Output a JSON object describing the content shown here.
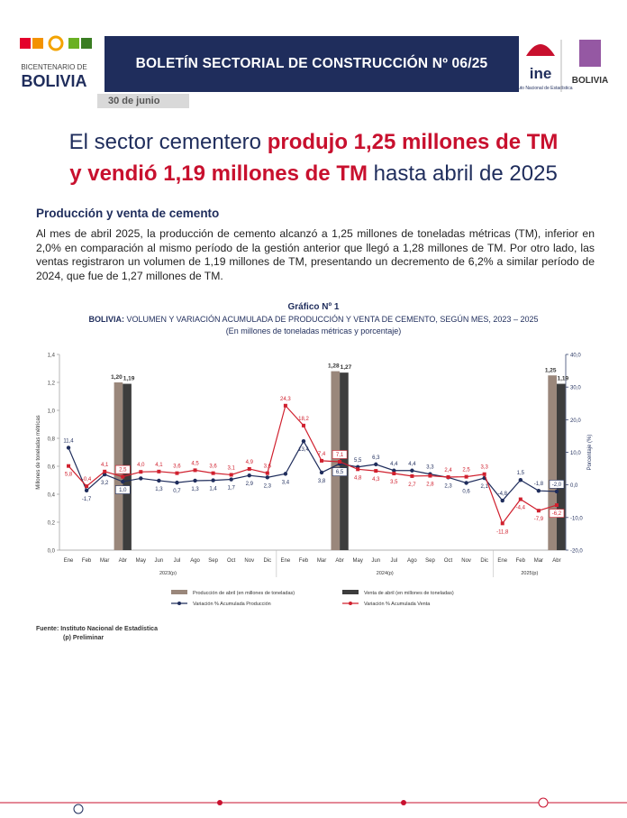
{
  "header": {
    "logo_line1": "BICENTENARIO DE",
    "logo_line2": "BOLIVIA",
    "title": "BOLETÍN SECTORIAL DE CONSTRUCCIÓN Nº 06/25",
    "date": "30 de junio",
    "ine": "ine",
    "ine_sub": "Instituto Nacional de Estadística",
    "gov": "BOLIVIA"
  },
  "headline": {
    "part1": "El sector cementero ",
    "part2": "produjo 1,25 millones de TM",
    "part3": "y vendió 1,19 millones de TM",
    "part4": " hasta abril de 2025"
  },
  "section_title": "Producción y venta de cemento",
  "paragraph": "Al mes de abril 2025, la producción de cemento alcanzó a 1,25 millones de toneladas métricas (TM), inferior en 2,0% en comparación al mismo período de la gestión anterior que llegó a 1,28 millones de TM. Por otro lado, las ventas registraron un volumen de 1,19 millones de TM, presentando un decremento de 6,2% a similar período de 2024, que fue de 1,27 millones de TM.",
  "source": [
    "Fuente: Instituto Nacional de Estadística",
    "(p) Preliminar"
  ],
  "chart_data": {
    "type": "bar_line",
    "label": "Gráfico Nº 1",
    "title_prefix": "BOLIVIA:",
    "title": " VOLUMEN Y VARIACIÓN ACUMULADA DE PRODUCCIÓN Y VENTA DE CEMENTO, SEGÚN MES, 2023 – 2025",
    "subtitle": "(En millones de toneladas métricas y porcentaje)",
    "y_label": "Millones de toneladas métricas",
    "y2_label": "Porcentaje (%)",
    "categories": [
      "Ene",
      "Feb",
      "Mar",
      "Abr",
      "May",
      "Jun",
      "Jul",
      "Ago",
      "Sep",
      "Oct",
      "Nov",
      "Dic",
      "Ene",
      "Feb",
      "Mar",
      "Abr",
      "May",
      "Jun",
      "Jul",
      "Ago",
      "Sep",
      "Oct",
      "Nov",
      "Dic",
      "Ene",
      "Feb",
      "Mar",
      "Abr"
    ],
    "year_groups": [
      {
        "label": "2023(p)",
        "count": 12
      },
      {
        "label": "2024(p)",
        "count": 12
      },
      {
        "label": "2025(p)",
        "count": 4
      }
    ],
    "ylim": [
      0,
      1.4
    ],
    "yticks": [
      {
        "value": 0,
        "label": "0,0"
      },
      {
        "value": 0.2,
        "label": "0,2"
      },
      {
        "value": 0.4,
        "label": "0,4"
      },
      {
        "value": 0.6,
        "label": "0,6"
      },
      {
        "value": 0.8,
        "label": "0,8"
      },
      {
        "value": 1.0,
        "label": "1,0"
      },
      {
        "value": 1.2,
        "label": "1,2"
      },
      {
        "value": 1.4,
        "label": "1,4"
      }
    ],
    "y2lim": [
      -20,
      40
    ],
    "y2ticks": [
      {
        "value": -20,
        "label": "-20,0"
      },
      {
        "value": -10,
        "label": "-10,0"
      },
      {
        "value": 0,
        "label": "0,0"
      },
      {
        "value": 10,
        "label": "10,0"
      },
      {
        "value": 20,
        "label": "20,0"
      },
      {
        "value": 30,
        "label": "30,0"
      },
      {
        "value": 40,
        "label": "40,0"
      }
    ],
    "series": [
      {
        "name": "Producción de abril (en millones de toneladas)",
        "type": "bar",
        "color": "#9a877b",
        "values": [
          null,
          null,
          null,
          1.2,
          null,
          null,
          null,
          null,
          null,
          null,
          null,
          null,
          null,
          null,
          null,
          1.28,
          null,
          null,
          null,
          null,
          null,
          null,
          null,
          null,
          null,
          null,
          null,
          1.25
        ],
        "value_labels": [
          null,
          null,
          null,
          "1,20",
          null,
          null,
          null,
          null,
          null,
          null,
          null,
          null,
          null,
          null,
          null,
          "1,28",
          null,
          null,
          null,
          null,
          null,
          null,
          null,
          null,
          null,
          null,
          null,
          "1,25"
        ]
      },
      {
        "name": "Venta de abril (en millones de toneladas)",
        "type": "bar",
        "color": "#3d3d3d",
        "values": [
          null,
          null,
          null,
          1.19,
          null,
          null,
          null,
          null,
          null,
          null,
          null,
          null,
          null,
          null,
          null,
          1.27,
          null,
          null,
          null,
          null,
          null,
          null,
          null,
          null,
          null,
          null,
          null,
          1.19
        ],
        "value_labels": [
          null,
          null,
          null,
          "1,19",
          null,
          null,
          null,
          null,
          null,
          null,
          null,
          null,
          null,
          null,
          null,
          "1,27",
          null,
          null,
          null,
          null,
          null,
          null,
          null,
          null,
          null,
          null,
          null,
          "1,19"
        ]
      },
      {
        "name": "Variación % Acumulada Producción",
        "type": "line",
        "axis": "y2",
        "color": "#1f2d5c",
        "values": [
          11.4,
          -1.7,
          3.2,
          1.0,
          2.0,
          1.3,
          0.7,
          1.3,
          1.4,
          1.7,
          2.9,
          2.3,
          3.4,
          13.4,
          3.8,
          6.5,
          5.5,
          6.3,
          4.4,
          4.4,
          3.3,
          2.3,
          0.6,
          2.1,
          -4.8,
          1.5,
          -1.8,
          -2.0
        ],
        "value_labels": [
          "11,4",
          "-1,7",
          "3,2",
          "1,0",
          null,
          "1,3",
          "0,7",
          "1,3",
          "1,4",
          "1,7",
          "2,9",
          "2,3",
          "3,4",
          "13,4",
          "3,8",
          "6,5",
          "5,5",
          "6,3",
          "4,4",
          "4,4",
          "3,3",
          "2,3",
          "0,6",
          "2,1",
          "-4,8",
          "1,5",
          "-1,8",
          "-2,0"
        ]
      },
      {
        "name": "Variación % Acumulada Venta",
        "type": "line",
        "axis": "y2",
        "color": "#d0202e",
        "values": [
          5.8,
          -0.4,
          4.1,
          2.5,
          4.0,
          4.1,
          3.6,
          4.5,
          3.6,
          3.1,
          4.9,
          3.6,
          24.3,
          18.2,
          7.4,
          7.1,
          4.8,
          4.3,
          3.5,
          2.7,
          2.8,
          2.4,
          2.5,
          3.3,
          -11.8,
          -4.4,
          -7.9,
          -6.2
        ],
        "value_labels": [
          "5,8",
          "-0,4",
          "4,1",
          "2,5",
          "4,0",
          "4,1",
          "3,6",
          "4,5",
          "3,6",
          "3,1",
          "4,9",
          "3,6",
          "24,3",
          "18,2",
          "7,4",
          "7,1",
          "4,8",
          "4,3",
          "3,5",
          "2,7",
          "2,8",
          "2,4",
          "2,5",
          "3,3",
          "-11,8",
          "-4,4",
          "-7,9",
          "-6,2"
        ]
      }
    ]
  }
}
